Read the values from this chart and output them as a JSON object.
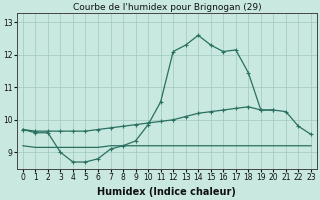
{
  "title": "Courbe de l'humidex pour Brignogan (29)",
  "xlabel": "Humidex (Indice chaleur)",
  "background_color": "#c8e8e0",
  "grid_color": "#a0c8c0",
  "line_color": "#2a7060",
  "xlim": [
    -0.5,
    23.5
  ],
  "ylim": [
    8.5,
    13.3
  ],
  "yticks": [
    9,
    10,
    11,
    12,
    13
  ],
  "xticks": [
    0,
    1,
    2,
    3,
    4,
    5,
    6,
    7,
    8,
    9,
    10,
    11,
    12,
    13,
    14,
    15,
    16,
    17,
    18,
    19,
    20,
    21,
    22,
    23
  ],
  "series1_x": [
    0,
    1,
    2,
    3,
    4,
    5,
    6,
    7,
    8,
    9,
    10,
    11,
    12,
    13,
    14,
    15,
    16,
    17,
    18,
    19,
    20
  ],
  "series1_y": [
    9.7,
    9.6,
    9.6,
    9.0,
    8.7,
    8.7,
    8.8,
    9.1,
    9.2,
    9.35,
    9.85,
    10.55,
    12.1,
    12.3,
    12.6,
    12.3,
    12.1,
    12.15,
    11.45,
    10.3,
    10.3
  ],
  "series2_x": [
    0,
    1,
    2,
    3,
    4,
    5,
    6,
    7,
    8,
    9,
    10,
    11,
    12,
    13,
    14,
    15,
    16,
    17,
    18,
    19,
    20,
    21,
    22,
    23
  ],
  "series2_y": [
    9.7,
    9.65,
    9.65,
    9.65,
    9.65,
    9.65,
    9.7,
    9.75,
    9.8,
    9.85,
    9.9,
    9.95,
    10.0,
    10.1,
    10.2,
    10.25,
    10.3,
    10.35,
    10.4,
    10.3,
    10.3,
    10.25,
    9.8,
    9.55
  ],
  "series3_x": [
    0,
    1,
    2,
    3,
    4,
    5,
    6,
    7,
    8,
    9,
    10,
    11,
    12,
    13,
    14,
    15,
    16,
    17,
    18,
    19,
    20,
    21,
    22,
    23
  ],
  "series3_y": [
    9.2,
    9.15,
    9.15,
    9.15,
    9.15,
    9.15,
    9.15,
    9.2,
    9.2,
    9.2,
    9.2,
    9.2,
    9.2,
    9.2,
    9.2,
    9.2,
    9.2,
    9.2,
    9.2,
    9.2,
    9.2,
    9.2,
    9.2,
    9.2
  ]
}
